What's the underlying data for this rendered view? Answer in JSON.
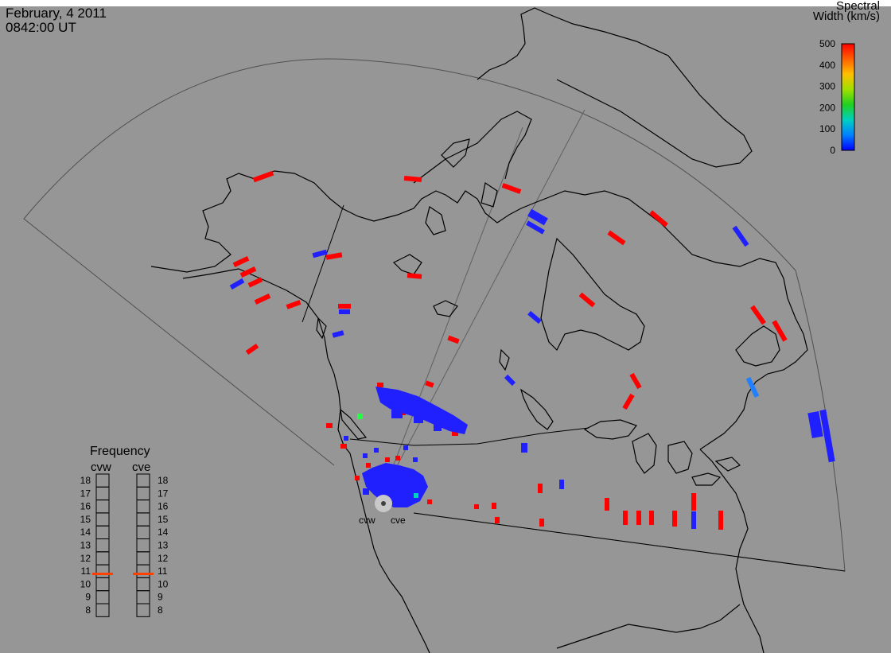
{
  "header": {
    "date": "February, 4 2011",
    "time": "0842:00 UT"
  },
  "colorbar": {
    "title_line1": "Spectral",
    "title_line2": "Width (km/s)",
    "ticks": [
      "500",
      "400",
      "300",
      "200",
      "100",
      "0"
    ],
    "gradient": [
      "#ff0000",
      "#ff6000",
      "#ffc000",
      "#a0e000",
      "#20d020",
      "#00d0c0",
      "#0080ff",
      "#0000ff"
    ]
  },
  "radars": {
    "labels": [
      "cvw",
      "cve"
    ]
  },
  "frequency_panel": {
    "title": "Frequency",
    "columns": [
      "cvw",
      "cve"
    ],
    "scale": [
      "18",
      "17",
      "16",
      "15",
      "14",
      "13",
      "12",
      "11",
      "10",
      "9",
      "8"
    ],
    "cvw_mhz": 10.8,
    "cve_mhz": 10.8,
    "marker_color": "#ff4000"
  },
  "colors": {
    "background": "#969696",
    "outline": "#000000",
    "high_width": "#ff0000",
    "low_width": "#2020ff"
  }
}
